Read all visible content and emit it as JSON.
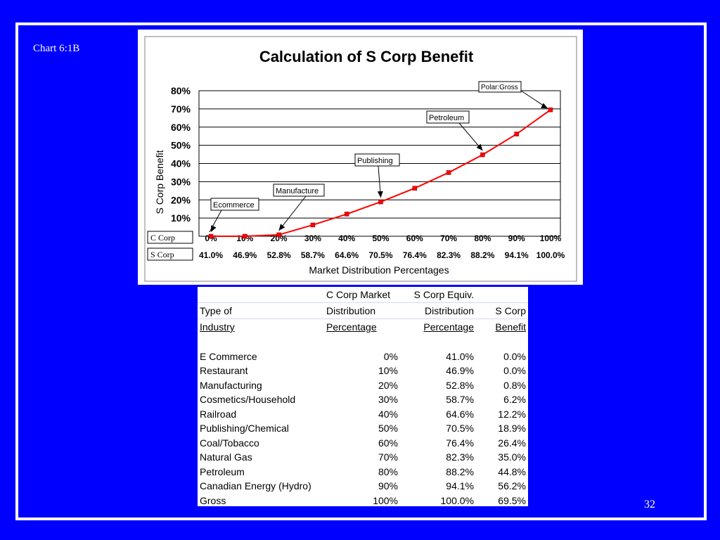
{
  "slide": {
    "chart_label": "Chart 6:1B",
    "slide_number": "32"
  },
  "chart_data": {
    "type": "line",
    "title": "Calculation of S Corp Benefit",
    "ylabel": "S Corp Benefit",
    "xlabel": "Market Distribution Percentages",
    "ylim": [
      0,
      80
    ],
    "y_ticks": [
      "0%",
      "10%",
      "20%",
      "30%",
      "40%",
      "50%",
      "60%",
      "70%",
      "80%"
    ],
    "row_labels": [
      "C Corp",
      "S Corp"
    ],
    "categories": [
      "0%",
      "10%",
      "20%",
      "30%",
      "40%",
      "50%",
      "60%",
      "70%",
      "80%",
      "90%",
      "100%"
    ],
    "s_corp_row": [
      "41.0%",
      "46.9%",
      "52.8%",
      "58.7%",
      "64.6%",
      "70.5%",
      "76.4%",
      "82.3%",
      "88.2%",
      "94.1%",
      "100.0%"
    ],
    "series": [
      {
        "values": [
          0.0,
          0.0,
          0.8,
          6.2,
          12.2,
          18.9,
          26.4,
          35.0,
          44.8,
          56.2,
          69.5
        ]
      }
    ],
    "grid": true,
    "line_color": "#ff0000",
    "annotations": [
      {
        "text": "Ecommerce",
        "category_index": 0
      },
      {
        "text": "Manufacture",
        "category_index": 2
      },
      {
        "text": "Publishing",
        "category_index": 5
      },
      {
        "text": "Petroleum",
        "category_index": 8
      },
      {
        "text": "Polar:Gross",
        "category_index": 10
      }
    ]
  },
  "table": {
    "headers": {
      "row1": [
        "",
        "C Corp Market",
        "S Corp Equiv.",
        ""
      ],
      "row2": [
        "Type of",
        "Distribution",
        "Distribution",
        "S Corp"
      ],
      "row3": [
        "Industry",
        "Percentage",
        "Percentage",
        "Benefit"
      ]
    },
    "rows": [
      [
        "E Commerce",
        "0%",
        "41.0%",
        "0.0%"
      ],
      [
        "Restaurant",
        "10%",
        "46.9%",
        "0.0%"
      ],
      [
        "Manufacturing",
        "20%",
        "52.8%",
        "0.8%"
      ],
      [
        "Cosmetics/Household",
        "30%",
        "58.7%",
        "6.2%"
      ],
      [
        "Railroad",
        "40%",
        "64.6%",
        "12.2%"
      ],
      [
        "Publishing/Chemical",
        "50%",
        "70.5%",
        "18.9%"
      ],
      [
        "Coal/Tobacco",
        "60%",
        "76.4%",
        "26.4%"
      ],
      [
        "Natural Gas",
        "70%",
        "82.3%",
        "35.0%"
      ],
      [
        "Petroleum",
        "80%",
        "88.2%",
        "44.8%"
      ],
      [
        "Canadian Energy (Hydro)",
        "90%",
        "94.1%",
        "56.2%"
      ],
      [
        "Gross",
        "100%",
        "100.0%",
        "69.5%"
      ]
    ]
  }
}
